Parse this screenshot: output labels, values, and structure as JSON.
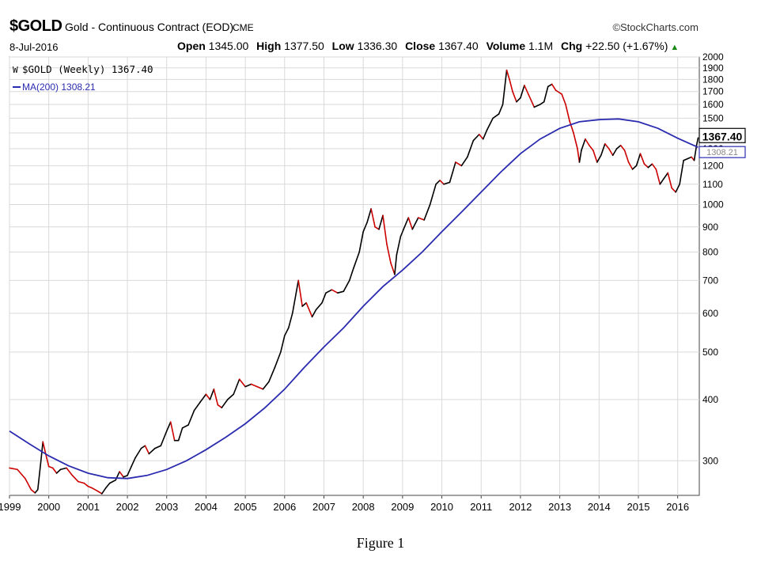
{
  "header": {
    "symbol": "$GOLD",
    "description": "Gold - Continuous Contract (EOD)",
    "exchange": "CME",
    "source": "©StockCharts.com",
    "date": "8-Jul-2016",
    "open_label": "Open",
    "open": "1345.00",
    "high_label": "High",
    "high": "1377.50",
    "low_label": "Low",
    "low": "1336.30",
    "close_label": "Close",
    "close": "1367.40",
    "volume_label": "Volume",
    "volume": "1.1M",
    "chg_label": "Chg",
    "chg": "+22.50 (+1.67%)",
    "up_color": "#1a8a1a"
  },
  "caption": "Figure 1",
  "chart_data": {
    "type": "line",
    "scale": "log",
    "ylim": [
      255,
      2000
    ],
    "xlim": [
      1999.0,
      2016.55
    ],
    "grid": true,
    "legend_position": "top-left",
    "x_ticks": [
      "1999",
      "2000",
      "2001",
      "2002",
      "2003",
      "2004",
      "2005",
      "2006",
      "2007",
      "2008",
      "2009",
      "2010",
      "2011",
      "2012",
      "2013",
      "2014",
      "2015",
      "2016"
    ],
    "y_ticks": [
      300,
      400,
      500,
      600,
      700,
      800,
      900,
      1000,
      1100,
      1200,
      1300,
      1400,
      1500,
      1600,
      1700,
      1800,
      1900,
      2000
    ],
    "last_price_label": "1367.40",
    "ma_value_label": "1308.21",
    "series": [
      {
        "name": "$GOLD (Weekly) 1367.40",
        "color": "#000000",
        "down_color": "#cc0000",
        "points": [
          [
            1999.0,
            290
          ],
          [
            1999.2,
            288
          ],
          [
            1999.4,
            276
          ],
          [
            1999.55,
            262
          ],
          [
            1999.65,
            258
          ],
          [
            1999.72,
            262
          ],
          [
            1999.8,
            300
          ],
          [
            1999.85,
            328
          ],
          [
            1999.92,
            310
          ],
          [
            2000.0,
            292
          ],
          [
            2000.1,
            290
          ],
          [
            2000.2,
            283
          ],
          [
            2000.3,
            288
          ],
          [
            2000.45,
            290
          ],
          [
            2000.6,
            280
          ],
          [
            2000.75,
            272
          ],
          [
            2000.9,
            270
          ],
          [
            2001.0,
            266
          ],
          [
            2001.1,
            264
          ],
          [
            2001.25,
            260
          ],
          [
            2001.35,
            257
          ],
          [
            2001.45,
            264
          ],
          [
            2001.55,
            270
          ],
          [
            2001.7,
            274
          ],
          [
            2001.8,
            285
          ],
          [
            2001.9,
            278
          ],
          [
            2002.0,
            280
          ],
          [
            2002.1,
            292
          ],
          [
            2002.2,
            304
          ],
          [
            2002.35,
            318
          ],
          [
            2002.45,
            322
          ],
          [
            2002.55,
            310
          ],
          [
            2002.7,
            318
          ],
          [
            2002.85,
            322
          ],
          [
            2003.0,
            345
          ],
          [
            2003.1,
            360
          ],
          [
            2003.2,
            330
          ],
          [
            2003.3,
            330
          ],
          [
            2003.4,
            350
          ],
          [
            2003.55,
            355
          ],
          [
            2003.7,
            380
          ],
          [
            2003.85,
            395
          ],
          [
            2004.0,
            410
          ],
          [
            2004.1,
            400
          ],
          [
            2004.2,
            420
          ],
          [
            2004.3,
            390
          ],
          [
            2004.4,
            385
          ],
          [
            2004.55,
            400
          ],
          [
            2004.7,
            410
          ],
          [
            2004.85,
            440
          ],
          [
            2005.0,
            425
          ],
          [
            2005.15,
            430
          ],
          [
            2005.3,
            425
          ],
          [
            2005.45,
            420
          ],
          [
            2005.6,
            435
          ],
          [
            2005.75,
            465
          ],
          [
            2005.9,
            500
          ],
          [
            2006.0,
            540
          ],
          [
            2006.1,
            560
          ],
          [
            2006.2,
            600
          ],
          [
            2006.35,
            700
          ],
          [
            2006.45,
            620
          ],
          [
            2006.55,
            630
          ],
          [
            2006.7,
            590
          ],
          [
            2006.8,
            610
          ],
          [
            2006.95,
            630
          ],
          [
            2007.05,
            660
          ],
          [
            2007.2,
            670
          ],
          [
            2007.35,
            660
          ],
          [
            2007.5,
            665
          ],
          [
            2007.65,
            700
          ],
          [
            2007.75,
            740
          ],
          [
            2007.9,
            800
          ],
          [
            2008.0,
            880
          ],
          [
            2008.1,
            920
          ],
          [
            2008.2,
            980
          ],
          [
            2008.3,
            900
          ],
          [
            2008.4,
            890
          ],
          [
            2008.5,
            950
          ],
          [
            2008.6,
            830
          ],
          [
            2008.7,
            760
          ],
          [
            2008.8,
            720
          ],
          [
            2008.85,
            790
          ],
          [
            2008.95,
            860
          ],
          [
            2009.05,
            900
          ],
          [
            2009.15,
            940
          ],
          [
            2009.25,
            890
          ],
          [
            2009.4,
            940
          ],
          [
            2009.55,
            930
          ],
          [
            2009.7,
            1000
          ],
          [
            2009.85,
            1100
          ],
          [
            2009.95,
            1120
          ],
          [
            2010.05,
            1100
          ],
          [
            2010.2,
            1110
          ],
          [
            2010.35,
            1220
          ],
          [
            2010.5,
            1200
          ],
          [
            2010.65,
            1250
          ],
          [
            2010.8,
            1350
          ],
          [
            2010.95,
            1390
          ],
          [
            2011.05,
            1360
          ],
          [
            2011.15,
            1420
          ],
          [
            2011.3,
            1500
          ],
          [
            2011.45,
            1530
          ],
          [
            2011.55,
            1600
          ],
          [
            2011.65,
            1880
          ],
          [
            2011.72,
            1800
          ],
          [
            2011.8,
            1700
          ],
          [
            2011.9,
            1620
          ],
          [
            2012.0,
            1650
          ],
          [
            2012.1,
            1750
          ],
          [
            2012.2,
            1680
          ],
          [
            2012.35,
            1580
          ],
          [
            2012.5,
            1600
          ],
          [
            2012.6,
            1620
          ],
          [
            2012.7,
            1740
          ],
          [
            2012.8,
            1760
          ],
          [
            2012.9,
            1710
          ],
          [
            2013.05,
            1680
          ],
          [
            2013.15,
            1600
          ],
          [
            2013.25,
            1480
          ],
          [
            2013.35,
            1400
          ],
          [
            2013.45,
            1300
          ],
          [
            2013.5,
            1220
          ],
          [
            2013.55,
            1290
          ],
          [
            2013.65,
            1360
          ],
          [
            2013.75,
            1320
          ],
          [
            2013.85,
            1290
          ],
          [
            2013.95,
            1220
          ],
          [
            2014.05,
            1260
          ],
          [
            2014.15,
            1330
          ],
          [
            2014.25,
            1300
          ],
          [
            2014.35,
            1260
          ],
          [
            2014.45,
            1300
          ],
          [
            2014.55,
            1320
          ],
          [
            2014.65,
            1290
          ],
          [
            2014.75,
            1220
          ],
          [
            2014.85,
            1180
          ],
          [
            2014.95,
            1200
          ],
          [
            2015.05,
            1270
          ],
          [
            2015.15,
            1210
          ],
          [
            2015.25,
            1190
          ],
          [
            2015.35,
            1210
          ],
          [
            2015.45,
            1180
          ],
          [
            2015.55,
            1100
          ],
          [
            2015.65,
            1130
          ],
          [
            2015.75,
            1160
          ],
          [
            2015.85,
            1080
          ],
          [
            2015.95,
            1060
          ],
          [
            2016.05,
            1100
          ],
          [
            2016.15,
            1230
          ],
          [
            2016.25,
            1240
          ],
          [
            2016.35,
            1250
          ],
          [
            2016.42,
            1230
          ],
          [
            2016.48,
            1320
          ],
          [
            2016.52,
            1367.4
          ]
        ]
      },
      {
        "name": "MA(200) 1308.21",
        "color": "#2b2bb0",
        "points": [
          [
            1999.0,
            345
          ],
          [
            1999.5,
            325
          ],
          [
            2000.0,
            307
          ],
          [
            2000.5,
            293
          ],
          [
            2001.0,
            283
          ],
          [
            2001.5,
            277
          ],
          [
            2002.0,
            276
          ],
          [
            2002.5,
            280
          ],
          [
            2003.0,
            288
          ],
          [
            2003.5,
            300
          ],
          [
            2004.0,
            316
          ],
          [
            2004.5,
            335
          ],
          [
            2005.0,
            357
          ],
          [
            2005.5,
            385
          ],
          [
            2006.0,
            420
          ],
          [
            2006.5,
            465
          ],
          [
            2007.0,
            512
          ],
          [
            2007.5,
            560
          ],
          [
            2008.0,
            620
          ],
          [
            2008.5,
            680
          ],
          [
            2009.0,
            735
          ],
          [
            2009.5,
            800
          ],
          [
            2010.0,
            880
          ],
          [
            2010.5,
            965
          ],
          [
            2011.0,
            1060
          ],
          [
            2011.5,
            1165
          ],
          [
            2012.0,
            1270
          ],
          [
            2012.5,
            1360
          ],
          [
            2013.0,
            1430
          ],
          [
            2013.5,
            1475
          ],
          [
            2014.0,
            1490
          ],
          [
            2014.5,
            1495
          ],
          [
            2015.0,
            1475
          ],
          [
            2015.5,
            1430
          ],
          [
            2016.0,
            1365
          ],
          [
            2016.52,
            1308.21
          ]
        ]
      }
    ]
  }
}
